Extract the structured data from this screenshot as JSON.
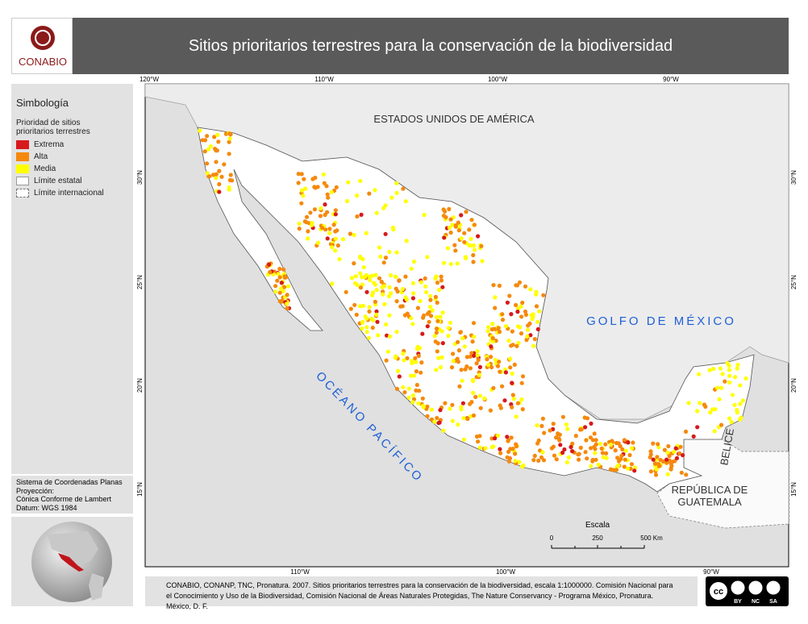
{
  "header": {
    "logo_text": "CONABIO",
    "title": "Sitios prioritarios terrestres para la conservación de la biodiversidad"
  },
  "legend": {
    "title": "Simbología",
    "subtitle": "Prioridad de sitios prioritarios terrestres",
    "items": [
      {
        "label": "Extrema",
        "color": "#d7191c"
      },
      {
        "label": "Alta",
        "color": "#f5890c"
      },
      {
        "label": "Media",
        "color": "#ffff00"
      },
      {
        "label": "Límite estatal"
      },
      {
        "label": "Límite internacional"
      }
    ]
  },
  "projection": {
    "lines": [
      "Sistema de Coordenadas Planas",
      "Proyección:",
      "Cónica Conforme de Lambert",
      "Datum: WGS 1984"
    ]
  },
  "map": {
    "labels": {
      "usa": "ESTADOS UNIDOS DE AMÉRICA",
      "gulf": "GOLFO DE MÉXICO",
      "pacific": "OCÉANO PACÍFICO",
      "belize": "BELICE",
      "guatemala_1": "REPÚBLICA DE",
      "guatemala_2": "GUATEMALA"
    },
    "graticule": {
      "top": [
        "120°W",
        "110°W",
        "100°W",
        "90°W"
      ],
      "bottom": [
        "110°W",
        "100°W",
        "90°W"
      ],
      "left": [
        "30°N",
        "25°N",
        "20°N",
        "15°N"
      ],
      "right": [
        "30°N",
        "25°N",
        "20°N",
        "15°N"
      ]
    },
    "scale": {
      "title": "Escala",
      "ticks": [
        "0",
        "250",
        "500 Km"
      ]
    }
  },
  "credits": "CONABIO, CONANP, TNC, Pronatura. 2007. Sitios prioritarios terrestres para la conservación de la biodiversidad, escala 1:1000000. Comisión Nacional para el Conocimiento y Uso de la Biodiversidad, Comisión Nacional de Áreas Naturales Protegidas, The Nature Conservancy - Programa México, Pronatura. México, D. F.",
  "license": [
    "BY",
    "NC",
    "SA"
  ]
}
